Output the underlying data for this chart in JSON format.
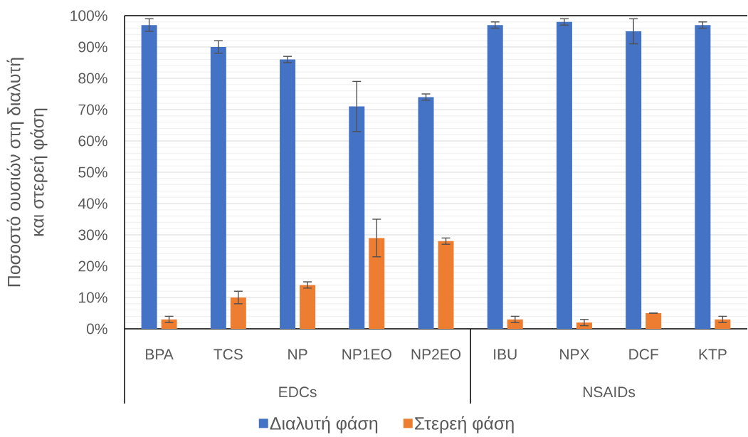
{
  "chart_data": {
    "type": "bar",
    "ylabel": "Ποσοστό ουσιών στη διαλυτή και στερεή φάση",
    "categories": [
      "BPA",
      "TCS",
      "NP",
      "NP1EO",
      "NP2EO",
      "IBU",
      "NPX",
      "DCF",
      "KTP"
    ],
    "series": [
      {
        "name": "Διαλυτή φάση",
        "color": "#4472c4",
        "values": [
          97,
          90,
          86,
          71,
          74,
          97,
          98,
          95,
          97
        ],
        "errors": [
          2,
          2,
          1,
          8,
          1,
          1,
          1,
          4,
          1
        ]
      },
      {
        "name": "Στερεή φάση",
        "color": "#ed7d31",
        "values": [
          3,
          10,
          14,
          29,
          28,
          3,
          2,
          5,
          3
        ],
        "errors": [
          1,
          2,
          1,
          6,
          1,
          1,
          1,
          0,
          1
        ]
      }
    ],
    "ylim": [
      0,
      100
    ],
    "yticks": [
      {
        "value": 0,
        "label": "0%"
      },
      {
        "value": 10,
        "label": "10%"
      },
      {
        "value": 20,
        "label": "20%"
      },
      {
        "value": 30,
        "label": "30%"
      },
      {
        "value": 40,
        "label": "40%"
      },
      {
        "value": 50,
        "label": "50%"
      },
      {
        "value": 60,
        "label": "60%"
      },
      {
        "value": 70,
        "label": "70%"
      },
      {
        "value": 80,
        "label": "80%"
      },
      {
        "value": 90,
        "label": "90%"
      },
      {
        "value": 100,
        "label": "100%"
      }
    ],
    "grid": "y",
    "legend": "bottom",
    "annotations": [
      "EDCs",
      "NSAIDs"
    ]
  }
}
